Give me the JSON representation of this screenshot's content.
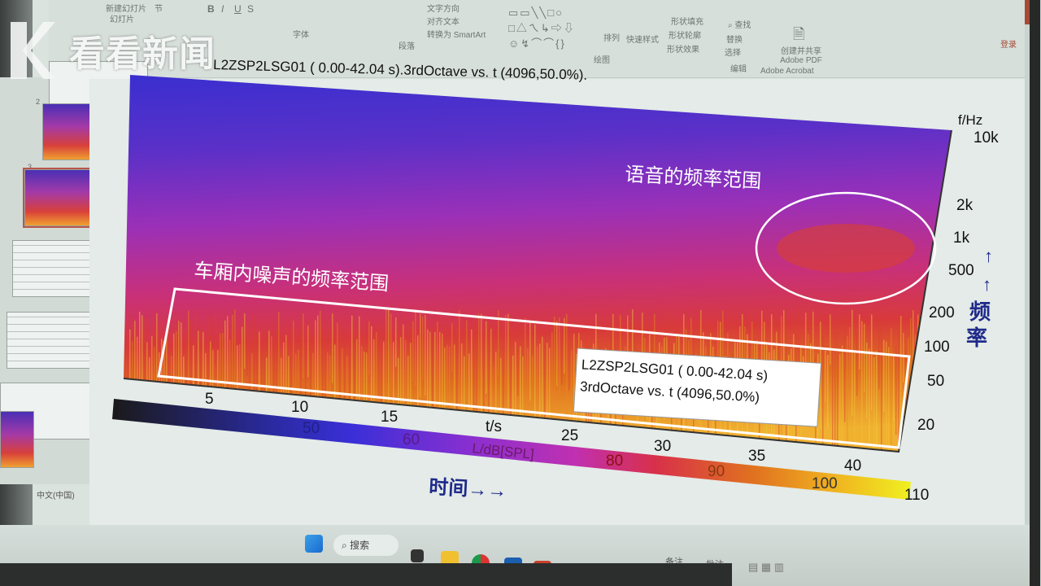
{
  "watermark": {
    "logo_text": "看看新闻"
  },
  "ribbon": {
    "groups": [
      "幻灯片",
      "字体",
      "段落",
      "绘图",
      "编辑",
      "Adobe Acrobat"
    ],
    "paragraph_items": [
      "文字方向",
      "对齐文本",
      "转换为 SmartArt"
    ],
    "drawing_items": [
      "排列",
      "快速样式",
      "形状填充",
      "形状轮廓",
      "形状效果"
    ],
    "editing_items": [
      "查找",
      "替换",
      "选择"
    ],
    "acrobat_button": "创建并共享 Adobe PDF",
    "font_buttons": [
      "B",
      "I",
      "U",
      "S"
    ],
    "new_slide": "新建幻灯片",
    "section": "节",
    "login": "登录"
  },
  "thumbnails": [
    {
      "num": "2"
    },
    {
      "num": "3"
    }
  ],
  "statusbar": {
    "language": "中文(中国)",
    "notes": "备注",
    "comments": "批注"
  },
  "taskbar": {
    "search": "搜索",
    "apps": [
      "windows-start",
      "task-view",
      "file-explorer",
      "chrome",
      "outlook",
      "powerpoint"
    ]
  },
  "slide": {
    "title": "L2ZSP2LSG01 ( 0.00-42.04 s).3rdOctave vs. t (4096,50.0%).",
    "speech_label": "语音的频率范围",
    "cabin_noise_label": "车厢内噪声的频率范围",
    "time_label": "时间→→",
    "freq_label": "频率",
    "freq_arrows": "↑↑",
    "legend_box": [
      "L2ZSP2LSG01 ( 0.00-42.04 s)",
      "3rdOctave vs. t (4096,50.0%)"
    ]
  },
  "chart_data": {
    "type": "heatmap",
    "title": "L2ZSP2LSG01 ( 0.00-42.04 s).3rdOctave vs. t (4096,50.0%).",
    "xlabel": "t/s",
    "ylabel": "f/Hz",
    "colorbar_label": "L/dB[SPL]",
    "x_ticks": [
      "5",
      "10",
      "15",
      "t/s",
      "25",
      "30",
      "35",
      "40"
    ],
    "xlim": [
      0,
      42.04
    ],
    "y_ticks": [
      "10k",
      "2k",
      "1k",
      "500",
      "200",
      "100",
      "50",
      "20"
    ],
    "y_scale": "log",
    "colorbar_ticks": [
      "50",
      "60",
      "80",
      "90",
      "100",
      "110"
    ],
    "colormap": [
      "#1a1a1a",
      "#2a2aa0",
      "#3a2fd8",
      "#8a2fd0",
      "#c030b0",
      "#d8304a",
      "#e05a20",
      "#f0a020",
      "#f0f020"
    ]
  },
  "colors": {
    "titlebar": "#a54a34",
    "annotation_text": "#1f2a8a",
    "annotation_outline": "#ffffff"
  }
}
